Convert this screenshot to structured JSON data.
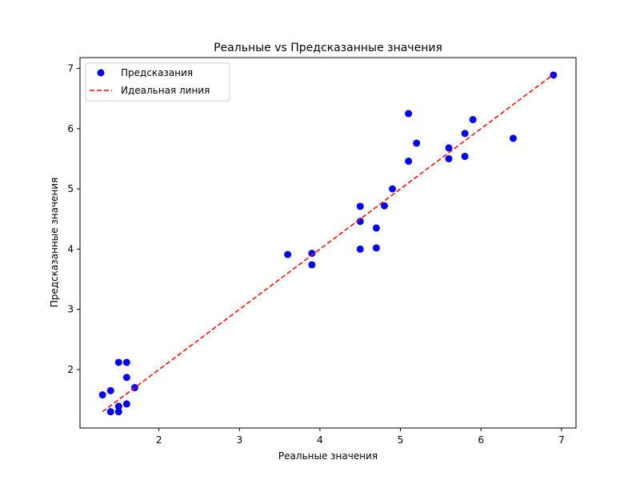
{
  "chart_data": {
    "type": "scatter",
    "title": "Реальные vs Предсказанные значения",
    "xlabel": "Реальные значения",
    "ylabel": "Предсказанные значения",
    "xlim": [
      1.02,
      7.18
    ],
    "ylim": [
      1.03,
      7.18
    ],
    "xticks": [
      2,
      3,
      4,
      5,
      6,
      7
    ],
    "yticks": [
      2,
      3,
      4,
      5,
      6,
      7
    ],
    "grid": false,
    "legend": "upper-left",
    "series": [
      {
        "name": "Предсказания",
        "kind": "scatter",
        "color": "#0000ff",
        "points": [
          [
            1.3,
            1.58
          ],
          [
            1.4,
            1.65
          ],
          [
            1.4,
            1.3
          ],
          [
            1.5,
            2.12
          ],
          [
            1.5,
            1.39
          ],
          [
            1.5,
            1.3
          ],
          [
            1.6,
            2.12
          ],
          [
            1.6,
            1.87
          ],
          [
            1.6,
            1.43
          ],
          [
            1.7,
            1.7
          ],
          [
            3.6,
            3.91
          ],
          [
            3.9,
            3.93
          ],
          [
            3.9,
            3.74
          ],
          [
            4.5,
            4.71
          ],
          [
            4.5,
            4.46
          ],
          [
            4.5,
            4.0
          ],
          [
            4.7,
            4.35
          ],
          [
            4.7,
            4.02
          ],
          [
            4.8,
            4.72
          ],
          [
            4.9,
            5.0
          ],
          [
            5.1,
            6.25
          ],
          [
            5.1,
            5.46
          ],
          [
            5.2,
            5.76
          ],
          [
            5.6,
            5.68
          ],
          [
            5.6,
            5.5
          ],
          [
            5.8,
            5.92
          ],
          [
            5.8,
            5.54
          ],
          [
            5.9,
            6.15
          ],
          [
            6.4,
            5.84
          ],
          [
            6.9,
            6.89
          ]
        ]
      },
      {
        "name": "Идеальная линия",
        "kind": "line",
        "style": "dashed",
        "color": "#ff0000",
        "points": [
          [
            1.3,
            1.3
          ],
          [
            6.9,
            6.9
          ]
        ]
      }
    ]
  }
}
